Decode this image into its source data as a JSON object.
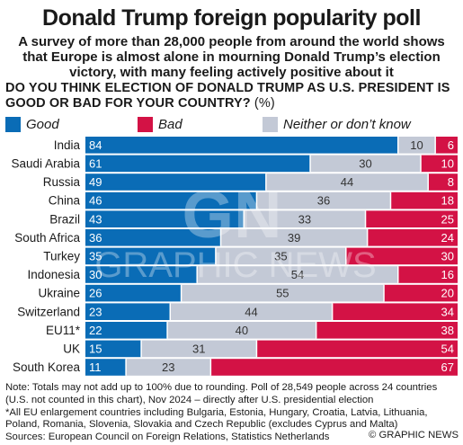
{
  "title": "Donald Trump foreign popularity poll",
  "subtitle": "A survey of more than 28,000 people from around the world shows that Europe is almost alone in mourning Donald Trump’s election victory, with many feeling actively positive about it",
  "question": "DO YOU THINK ELECTION OF DONALD TRUMP AS U.S. PRESIDENT IS GOOD OR BAD FOR YOUR COUNTRY?",
  "question_unit": "(%)",
  "colors": {
    "good": "#0a6cb6",
    "neither": "#c3c9d6",
    "bad": "#d31245",
    "divider": "#ffffff"
  },
  "chart_data": {
    "type": "bar",
    "stacked": true,
    "orientation": "horizontal",
    "categories": [
      "India",
      "Saudi Arabia",
      "Russia",
      "China",
      "Brazil",
      "South Africa",
      "Turkey",
      "Indonesia",
      "Ukraine",
      "Switzerland",
      "EU11*",
      "UK",
      "South Korea"
    ],
    "series": [
      {
        "name": "Good",
        "values": [
          84,
          61,
          49,
          46,
          43,
          36,
          35,
          30,
          26,
          23,
          22,
          15,
          11
        ]
      },
      {
        "name": "Neither or don’t know",
        "values": [
          10,
          30,
          44,
          36,
          33,
          39,
          35,
          54,
          55,
          44,
          40,
          31,
          23
        ]
      },
      {
        "name": "Bad",
        "values": [
          6,
          10,
          8,
          18,
          25,
          24,
          30,
          16,
          20,
          34,
          38,
          54,
          67
        ]
      }
    ],
    "legend_position": "top",
    "grid": false
  },
  "watermark": {
    "text": "GRAPHIC NEWS",
    "logo": "GN"
  },
  "footer": {
    "notes": [
      "Note: Totals may not add up to 100% due to rounding. Poll of 28,549 people across 24 countries (U.S. not counted in this chart), Nov 2024 – directly after U.S. presidential election",
      "*All EU enlargement countries including Bulgaria, Estonia, Hungary, Croatia, Latvia, Lithuania, Poland, Romania, Slovenia, Slovakia and Czech Republic (excludes Cyprus and Malta)",
      "Sources: European Council on Foreign Relations, Statistics Netherlands"
    ],
    "credit": "© GRAPHIC NEWS"
  }
}
